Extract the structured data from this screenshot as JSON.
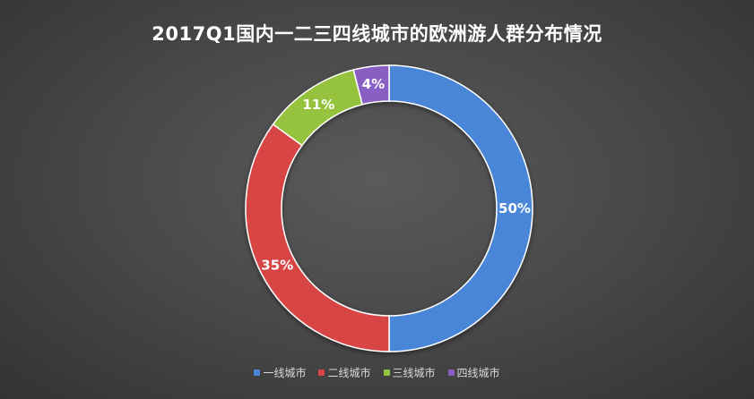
{
  "chart_data": {
    "type": "pie",
    "title": "2017Q1国内一二三四线城市的欧洲游人群分布情况",
    "donut": true,
    "legend_position": "bottom",
    "categories": [
      "一线城市",
      "二线城市",
      "三线城市",
      "四线城市"
    ],
    "values": [
      50,
      35,
      11,
      4
    ],
    "labels": [
      "50%",
      "35%",
      "11%",
      "4%"
    ],
    "colors": [
      "#4a86d8",
      "#d84545",
      "#95c33e",
      "#8a5ec4"
    ]
  }
}
